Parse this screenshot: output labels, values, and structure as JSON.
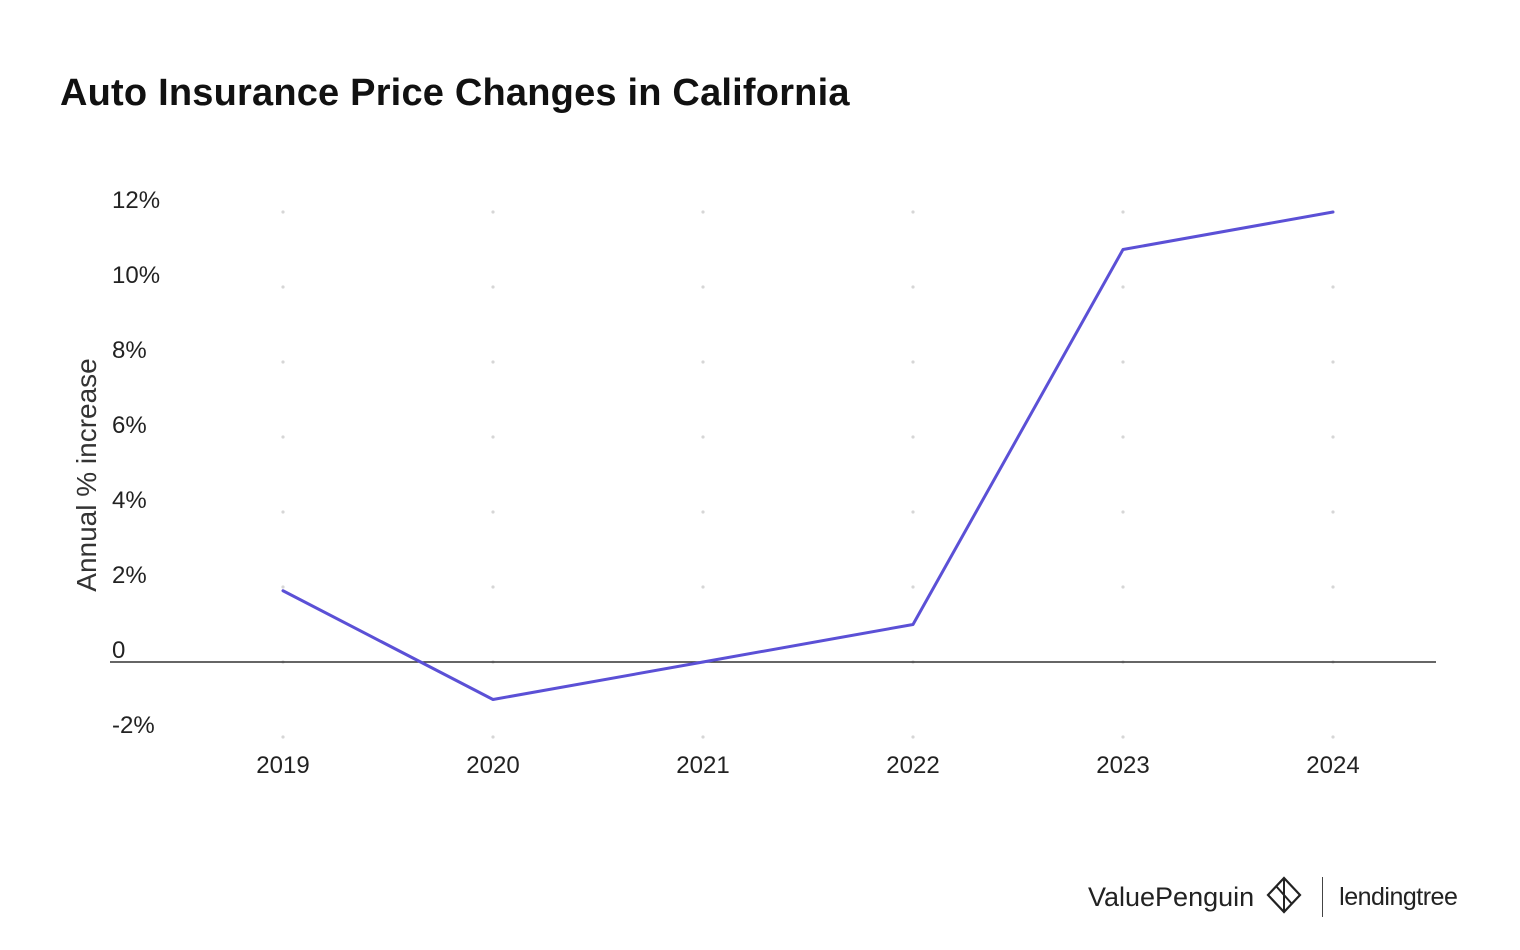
{
  "chart_data": {
    "type": "line",
    "title": "Auto Insurance Price Changes in California",
    "ylabel": "Annual % increase",
    "xlabel": "",
    "categories": [
      "2019",
      "2020",
      "2021",
      "2022",
      "2023",
      "2024"
    ],
    "series": [
      {
        "values": [
          1.9,
          -1.0,
          0.0,
          1.0,
          11.0,
          12.0
        ],
        "color": "#5b50d6"
      }
    ],
    "yticks": [
      12,
      10,
      8,
      6,
      4,
      2,
      0,
      -2
    ],
    "ytick_labels": [
      "12%",
      "10%",
      "8%",
      "6%",
      "4%",
      "2%",
      "0",
      "-2%"
    ],
    "ylim": [
      -2,
      12
    ],
    "grid": "dotted",
    "zero_line_color": "#333333"
  },
  "brand": {
    "valuepenguin": "ValuePenguin",
    "lendingtree": "lendingtree",
    "logo_icon": "valuepenguin-logo-icon"
  }
}
